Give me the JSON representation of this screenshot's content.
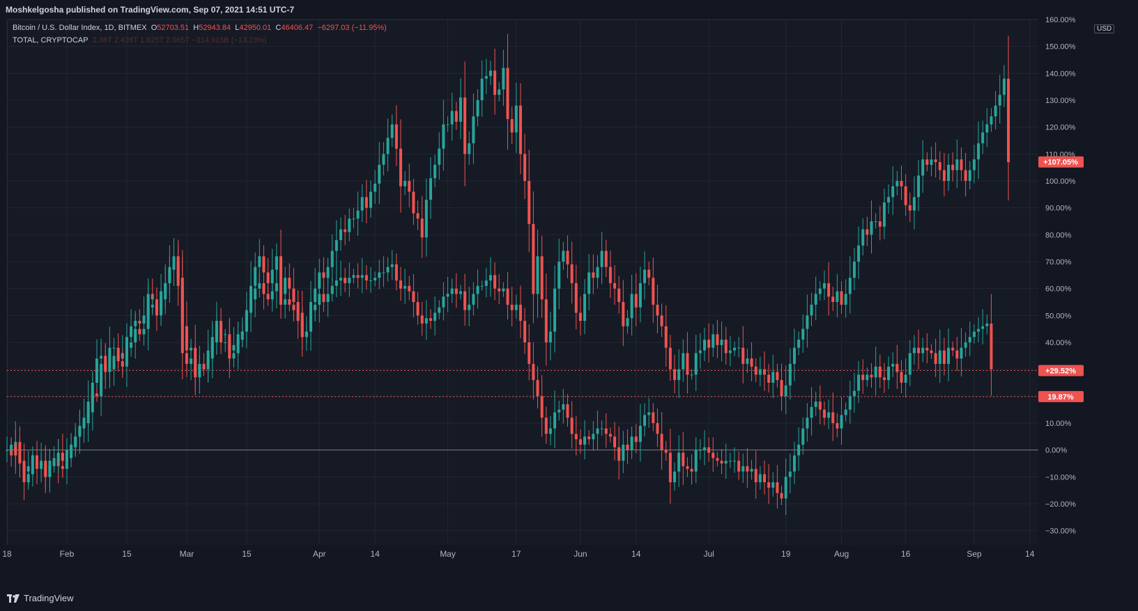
{
  "header": {
    "publisher": "Moshkelgosha published on TradingView.com, Sep 07, 2021 14:51 UTC-7"
  },
  "legend": {
    "series1": {
      "label": "Bitcoin / U.S. Dollar Index, 1D, BITMEX",
      "o_key": "O",
      "o": "52703.51",
      "h_key": "H",
      "h": "52943.84",
      "l_key": "L",
      "l": "42950.01",
      "c_key": "C",
      "c": "46406.47",
      "change": "−6297.03 (−11.95%)"
    },
    "series2": {
      "label": "TOTAL, CRYPTOCAP",
      "values": "2.36T 2.426T 1.825T 2.065T −314.915B (−13.23%)"
    }
  },
  "footer": {
    "brand": "TradingView"
  },
  "colors": {
    "up": "#26a69a",
    "down": "#ef5350",
    "background": "#161a25",
    "grid": "#232733"
  },
  "chart_data": {
    "type": "candlestick",
    "y_unit": "percent",
    "ylim": [
      -35,
      160
    ],
    "y_ticks": [
      -30,
      -20,
      -10,
      0,
      10,
      20,
      30,
      40,
      50,
      60,
      70,
      80,
      90,
      100,
      110,
      120,
      130,
      140,
      150,
      160
    ],
    "y_tick_labels": [
      "−30.00%",
      "−20.00%",
      "−10.00%",
      "0.00%",
      "10.00%",
      "20.00%",
      "",
      "40.00%",
      "50.00%",
      "60.00%",
      "70.00%",
      "80.00%",
      "90.00%",
      "100.00%",
      "110.00%",
      "120.00%",
      "130.00%",
      "140.00%",
      "150.00%",
      "160.00%"
    ],
    "y_axis_currency": "USD",
    "x_range": [
      "2021-01-18",
      "2021-09-16"
    ],
    "x_ticks": [
      {
        "date": "2021-01-18",
        "label": "18"
      },
      {
        "date": "2021-02-01",
        "label": "Feb"
      },
      {
        "date": "2021-02-15",
        "label": "15"
      },
      {
        "date": "2021-03-01",
        "label": "Mar"
      },
      {
        "date": "2021-03-15",
        "label": "15"
      },
      {
        "date": "2021-04-01",
        "label": "Apr"
      },
      {
        "date": "2021-04-14",
        "label": "14"
      },
      {
        "date": "2021-05-01",
        "label": "May"
      },
      {
        "date": "2021-05-17",
        "label": "17"
      },
      {
        "date": "2021-06-01",
        "label": "Jun"
      },
      {
        "date": "2021-06-14",
        "label": "14"
      },
      {
        "date": "2021-07-01",
        "label": "Jul"
      },
      {
        "date": "2021-07-19",
        "label": "19"
      },
      {
        "date": "2021-08-01",
        "label": "Aug"
      },
      {
        "date": "2021-08-16",
        "label": "16"
      },
      {
        "date": "2021-09-01",
        "label": "Sep"
      },
      {
        "date": "2021-09-14",
        "label": "14"
      }
    ],
    "series": [
      {
        "name": "Bitcoin / U.S. Dollar Index, 1D, BITMEX",
        "start_date": "2021-01-18",
        "close": [
          0,
          -2,
          3,
          -5,
          -12,
          -9,
          -6,
          -7,
          -5,
          -10,
          -4,
          -3,
          -6,
          -7,
          -3,
          2,
          5,
          8,
          10,
          18,
          25,
          34,
          35,
          30,
          38,
          38,
          34,
          36,
          42,
          46,
          48,
          47,
          50,
          58,
          56,
          52,
          59,
          62,
          67,
          72,
          64,
          46,
          37,
          38,
          28,
          32,
          32,
          37,
          42,
          48,
          40,
          40,
          34,
          36,
          41,
          44,
          52,
          61,
          68,
          72,
          66,
          62,
          67,
          72,
          58,
          64,
          60,
          55,
          51,
          42,
          44,
          55,
          60,
          66,
          64,
          68,
          74,
          78,
          82,
          81,
          86,
          86,
          89,
          94,
          90,
          96,
          99,
          106,
          110,
          116,
          121,
          112,
          98,
          100,
          96,
          88,
          86,
          79,
          93,
          101,
          106,
          112,
          121,
          121,
          126,
          122,
          131,
          110,
          114,
          124,
          130,
          138,
          139,
          141,
          132,
          134,
          142,
          123,
          118,
          128,
          110,
          100,
          84,
          58,
          72,
          56,
          40,
          44,
          60,
          70,
          74,
          69,
          62,
          51,
          48,
          58,
          66,
          64,
          68,
          74,
          68,
          62,
          60,
          55,
          46,
          49,
          58,
          53,
          62,
          67,
          64,
          54,
          50,
          46,
          38,
          30,
          26,
          30,
          36,
          28,
          28,
          36,
          37,
          41,
          38,
          43,
          39,
          41,
          36,
          37,
          38,
          38,
          32,
          34,
          31,
          28,
          30,
          28,
          25,
          29,
          26,
          20,
          24,
          32,
          38,
          41,
          45,
          50,
          54,
          58,
          60,
          62,
          57,
          55,
          59,
          54,
          58,
          64,
          70,
          76,
          82,
          80,
          85,
          85,
          83,
          92,
          94,
          98,
          100,
          98,
          91,
          89,
          94,
          102,
          108,
          106,
          108,
          107,
          104,
          100,
          106,
          104,
          108,
          104,
          100,
          104,
          108,
          114,
          118,
          121,
          124,
          128,
          132,
          138,
          107
        ]
      },
      {
        "name": "TOTAL, CRYPTOCAP",
        "start_date": "2021-01-18",
        "close": [
          0,
          2,
          -2,
          -4,
          -8,
          -6,
          -2,
          -6,
          -4,
          -10,
          -6,
          -4,
          -1,
          -4,
          0,
          1,
          5,
          9,
          12,
          14,
          21,
          20,
          32,
          29,
          30,
          35,
          33,
          31,
          38,
          40,
          45,
          43,
          45,
          53,
          54,
          50,
          56,
          62,
          68,
          70,
          61,
          36,
          32,
          34,
          27,
          32,
          30,
          34,
          40,
          46,
          43,
          43,
          37,
          39,
          43,
          44,
          51,
          56,
          60,
          62,
          58,
          56,
          59,
          62,
          54,
          56,
          54,
          52,
          48,
          42,
          44,
          52,
          54,
          58,
          55,
          58,
          61,
          63,
          64,
          62,
          64,
          65,
          64,
          65,
          63,
          63,
          64,
          66,
          66,
          68,
          69,
          63,
          60,
          61,
          59,
          55,
          50,
          47,
          49,
          48,
          51,
          53,
          57,
          58,
          60,
          58,
          59,
          52,
          54,
          58,
          61,
          61,
          63,
          65,
          60,
          59,
          60,
          54,
          52,
          54,
          48,
          40,
          32,
          26,
          20,
          12,
          6,
          8,
          14,
          15,
          17,
          12,
          6,
          4,
          2,
          5,
          4,
          6,
          8,
          8,
          6,
          5,
          1,
          -4,
          2,
          0,
          5,
          3,
          9,
          13,
          14,
          10,
          6,
          0,
          -1,
          -12,
          -8,
          -1,
          -6,
          -7,
          -8,
          0,
          0,
          1,
          -1,
          -3,
          -4,
          -5,
          -4,
          -4,
          -4,
          -8,
          -6,
          -8,
          -7,
          -12,
          -9,
          -12,
          -14,
          -12,
          -16,
          -18,
          -10,
          -8,
          -2,
          2,
          8,
          12,
          16,
          18,
          15,
          12,
          14,
          10,
          8,
          13,
          15,
          20,
          22,
          28,
          26,
          28,
          27,
          31,
          27,
          26,
          31,
          32,
          29,
          25,
          28,
          36,
          38,
          36,
          38,
          37,
          36,
          32,
          37,
          32,
          38,
          37,
          34,
          38,
          40,
          42,
          44,
          45,
          46,
          47,
          30
        ]
      }
    ],
    "reference_lines": [
      {
        "value": 0,
        "style": "solid"
      },
      {
        "value": 29.52,
        "label": "+29.52%",
        "style": "dotted"
      },
      {
        "value": 19.87,
        "label": "19.87%",
        "style": "dotted"
      }
    ],
    "last_value_labels": [
      {
        "value": 107.05,
        "label": "+107.05%"
      },
      {
        "value": 29.52,
        "label": "+29.52%"
      },
      {
        "value": 19.87,
        "label": "19.87%"
      }
    ]
  }
}
